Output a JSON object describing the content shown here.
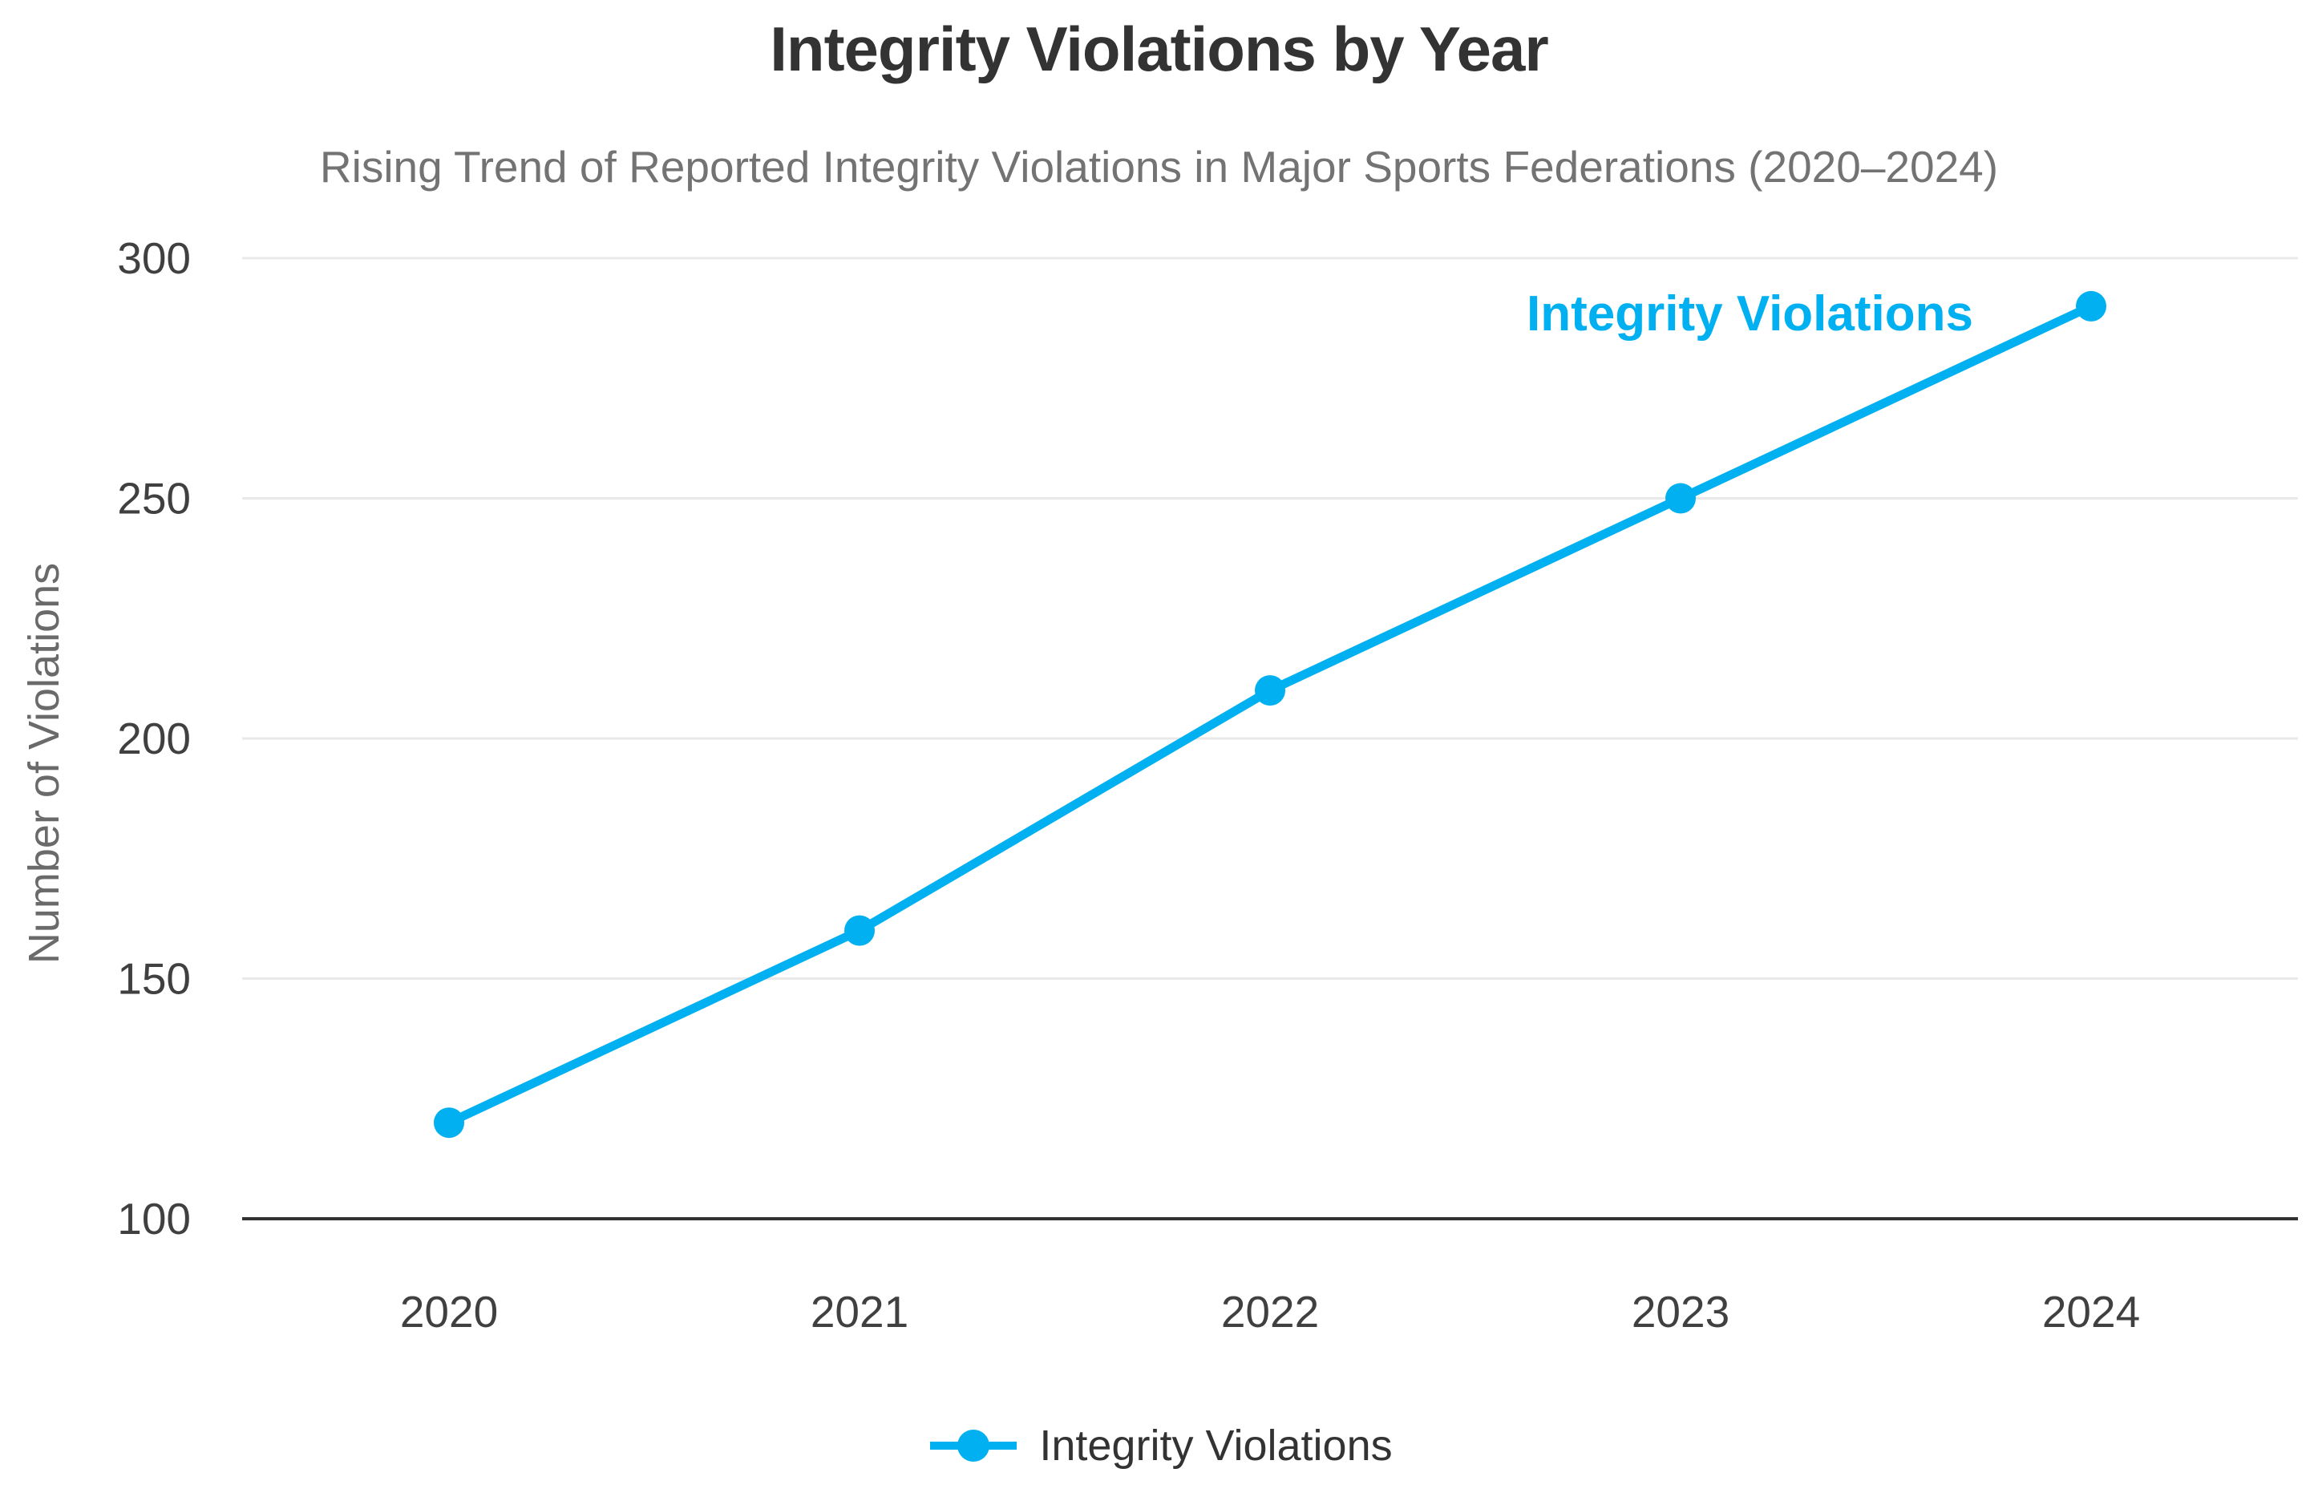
{
  "chart_data": {
    "type": "line",
    "title": "Integrity Violations by Year",
    "subtitle": "Rising Trend of Reported Integrity Violations in Major Sports Federations (2020–2024)",
    "xlabel": "",
    "ylabel": "Number of Violations",
    "categories": [
      "2020",
      "2021",
      "2022",
      "2023",
      "2024"
    ],
    "series": [
      {
        "name": "Integrity Violations",
        "values": [
          120,
          160,
          210,
          250,
          290
        ]
      }
    ],
    "series_annotation": "Integrity Violations",
    "ylim": [
      100,
      300
    ],
    "yticks": [
      100,
      150,
      200,
      250,
      300
    ],
    "grid": "horizontal",
    "legend": {
      "position": "bottom",
      "label": "Integrity Violations"
    },
    "colors": {
      "line": "#00B0F0",
      "title": "#333333",
      "subtitle": "#737373",
      "tick_label": "#404040",
      "axis_label": "#6a6a6a",
      "gridline": "#e9e9e9",
      "axis_line": "#333333",
      "legend_text": "#333333"
    }
  }
}
